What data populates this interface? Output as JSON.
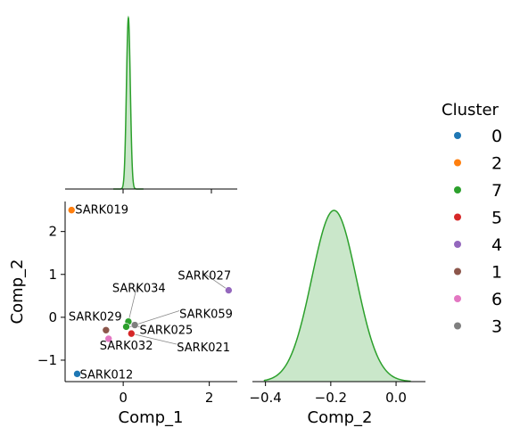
{
  "chart_data": [
    {
      "type": "area",
      "panel": "kde-comp1",
      "series_color": "#2ca02c",
      "peak_center": 0.12,
      "peak_sd": 0.045,
      "ylim": [
        0,
        1.0
      ],
      "xlim": [
        -1.35,
        2.65
      ]
    },
    {
      "type": "scatter",
      "panel": "scatter",
      "xlabel": "Comp_1",
      "ylabel": "Comp_2",
      "xlim": [
        -1.35,
        2.65
      ],
      "ylim": [
        -1.5,
        2.7
      ],
      "x_ticks": [
        {
          "value": 0,
          "label": "0"
        },
        {
          "value": 2,
          "label": "2"
        }
      ],
      "y_ticks": [
        {
          "value": -1,
          "label": "−1"
        },
        {
          "value": 0,
          "label": "0"
        },
        {
          "value": 1,
          "label": "1"
        },
        {
          "value": 2,
          "label": "2"
        }
      ],
      "points": [
        {
          "label": "SARK019",
          "x": -1.2,
          "y": 2.5,
          "cluster": "2",
          "label_dx": 4,
          "label_dy": 0,
          "anchor": "start",
          "leader": false
        },
        {
          "label": "SARK027",
          "x": 2.45,
          "y": 0.63,
          "cluster": "4",
          "label_dx": -57,
          "label_dy": -16,
          "anchor": "start",
          "leader": true
        },
        {
          "label": "SARK034",
          "x": 0.12,
          "y": -0.1,
          "cluster": "7",
          "label_dx": -18,
          "label_dy": -37,
          "anchor": "start",
          "leader": true
        },
        {
          "label": "SARK059",
          "x": 0.27,
          "y": -0.18,
          "cluster": "3",
          "label_dx": 50,
          "label_dy": -12,
          "anchor": "start",
          "leader": true
        },
        {
          "label": "SARK029",
          "x": -0.4,
          "y": -0.3,
          "cluster": "1",
          "label_dx": -42,
          "label_dy": -15,
          "anchor": "start",
          "leader": false
        },
        {
          "label": "SARK025",
          "x": 0.07,
          "y": -0.22,
          "cluster": "7",
          "label_dx": 15,
          "label_dy": 4,
          "anchor": "start",
          "leader": true
        },
        {
          "label": "SARK021",
          "x": 0.19,
          "y": -0.38,
          "cluster": "5",
          "label_dx": 51,
          "label_dy": 16,
          "anchor": "start",
          "leader": true
        },
        {
          "label": "SARK032",
          "x": -0.34,
          "y": -0.5,
          "cluster": "6",
          "label_dx": -10,
          "label_dy": 8,
          "anchor": "start",
          "leader": false
        },
        {
          "label": "SARK012",
          "x": -1.07,
          "y": -1.32,
          "cluster": "0",
          "label_dx": 3,
          "label_dy": 1,
          "anchor": "start",
          "leader": false
        }
      ]
    },
    {
      "type": "area",
      "panel": "kde-comp2",
      "xlabel": "Comp_2",
      "series_color": "#2ca02c",
      "peak_center": -0.19,
      "peak_sd": 0.068,
      "curve_range": [
        -0.405,
        0.045
      ],
      "xlim": [
        -0.44,
        0.09
      ],
      "x_ticks": [
        {
          "value": -0.4,
          "label": "−0.4"
        },
        {
          "value": -0.2,
          "label": "−0.2"
        },
        {
          "value": 0.0,
          "label": "0.0"
        }
      ]
    }
  ],
  "legend": {
    "title": "Cluster",
    "placement": "right",
    "entries": [
      {
        "label": "0",
        "color": "#1f77b4"
      },
      {
        "label": "2",
        "color": "#ff7f0e"
      },
      {
        "label": "7",
        "color": "#2ca02c"
      },
      {
        "label": "5",
        "color": "#d62728"
      },
      {
        "label": "4",
        "color": "#9467bd"
      },
      {
        "label": "1",
        "color": "#8c564b"
      },
      {
        "label": "6",
        "color": "#e377c2"
      },
      {
        "label": "3",
        "color": "#7f7f7f"
      }
    ]
  }
}
